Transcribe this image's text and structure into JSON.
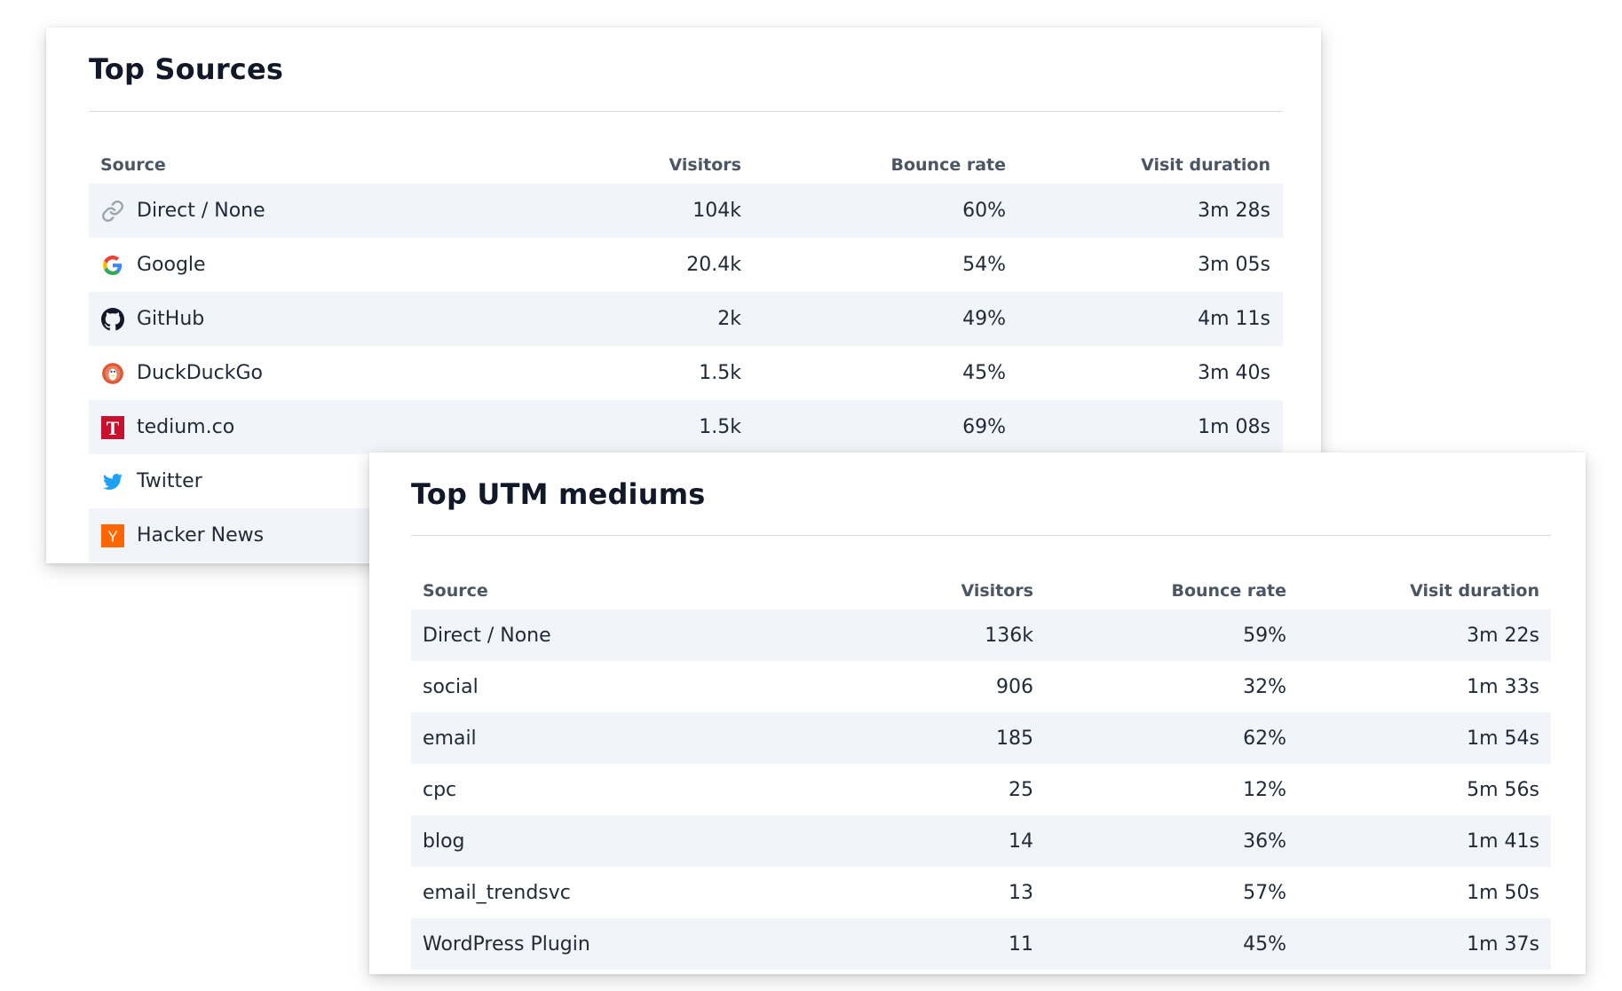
{
  "top_sources": {
    "title": "Top Sources",
    "headers": {
      "source": "Source",
      "visitors": "Visitors",
      "bounce": "Bounce rate",
      "duration": "Visit duration"
    },
    "rows": [
      {
        "source": "Direct / None",
        "icon": "link-icon",
        "visitors": "104k",
        "bounce": "60%",
        "duration": "3m 28s"
      },
      {
        "source": "Google",
        "icon": "google-icon",
        "visitors": "20.4k",
        "bounce": "54%",
        "duration": "3m 05s"
      },
      {
        "source": "GitHub",
        "icon": "github-icon",
        "visitors": "2k",
        "bounce": "49%",
        "duration": "4m 11s"
      },
      {
        "source": "DuckDuckGo",
        "icon": "duckduckgo-icon",
        "visitors": "1.5k",
        "bounce": "45%",
        "duration": "3m 40s"
      },
      {
        "source": "tedium.co",
        "icon": "tedium-icon",
        "visitors": "1.5k",
        "bounce": "69%",
        "duration": "1m 08s"
      },
      {
        "source": "Twitter",
        "icon": "twitter-icon",
        "visitors": "",
        "bounce": "",
        "duration": ""
      },
      {
        "source": "Hacker News",
        "icon": "hacker-news-icon",
        "visitors": "",
        "bounce": "",
        "duration": ""
      }
    ]
  },
  "top_utm_mediums": {
    "title": "Top UTM mediums",
    "headers": {
      "source": "Source",
      "visitors": "Visitors",
      "bounce": "Bounce rate",
      "duration": "Visit duration"
    },
    "rows": [
      {
        "source": "Direct / None",
        "visitors": "136k",
        "bounce": "59%",
        "duration": "3m 22s"
      },
      {
        "source": "social",
        "visitors": "906",
        "bounce": "32%",
        "duration": "1m 33s"
      },
      {
        "source": "email",
        "visitors": "185",
        "bounce": "62%",
        "duration": "1m 54s"
      },
      {
        "source": "cpc",
        "visitors": "25",
        "bounce": "12%",
        "duration": "5m 56s"
      },
      {
        "source": "blog",
        "visitors": "14",
        "bounce": "36%",
        "duration": "1m 41s"
      },
      {
        "source": "email_trendsvc",
        "visitors": "13",
        "bounce": "57%",
        "duration": "1m 50s"
      },
      {
        "source": "WordPress Plugin",
        "visitors": "11",
        "bounce": "45%",
        "duration": "1m 37s"
      }
    ]
  },
  "colors": {
    "stripe": "#f1f4f8",
    "google_blue": "#4285F4",
    "google_red": "#EA4335",
    "google_yellow": "#FBBC05",
    "google_green": "#34A853",
    "duckduckgo": "#DE5833",
    "tedium_red": "#C8102E",
    "twitter_blue": "#1DA1F2",
    "hacker_news_orange": "#FF6600"
  },
  "icons": {
    "tedium_letter": "T",
    "hacker_news_letter": "Y"
  }
}
